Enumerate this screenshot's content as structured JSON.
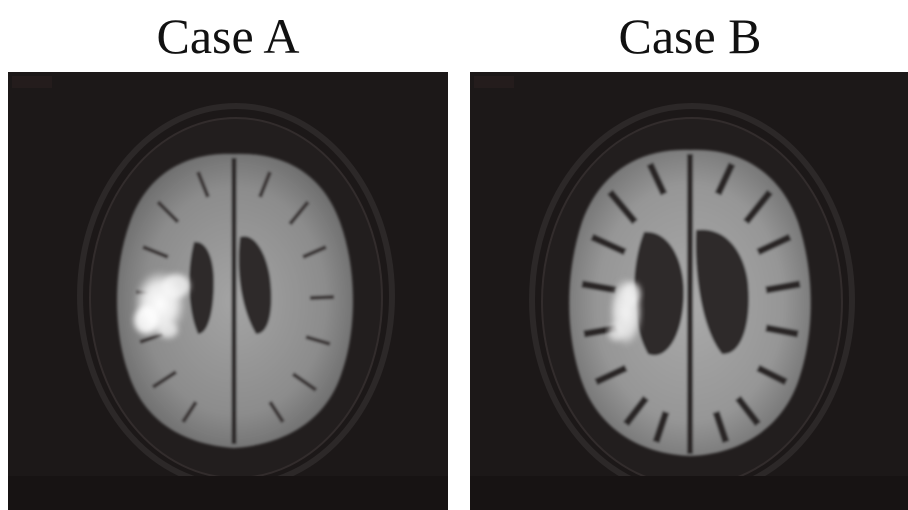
{
  "figure": {
    "panels": [
      {
        "caption": "Case A",
        "background_color": "#1c1818",
        "lesion_color": "#ffffff",
        "tissue_color": "#8e8e8e"
      },
      {
        "caption": "Case B",
        "background_color": "#1c1818",
        "lesion_color": "#f4f4f4",
        "tissue_color": "#9a9a9a"
      }
    ]
  }
}
